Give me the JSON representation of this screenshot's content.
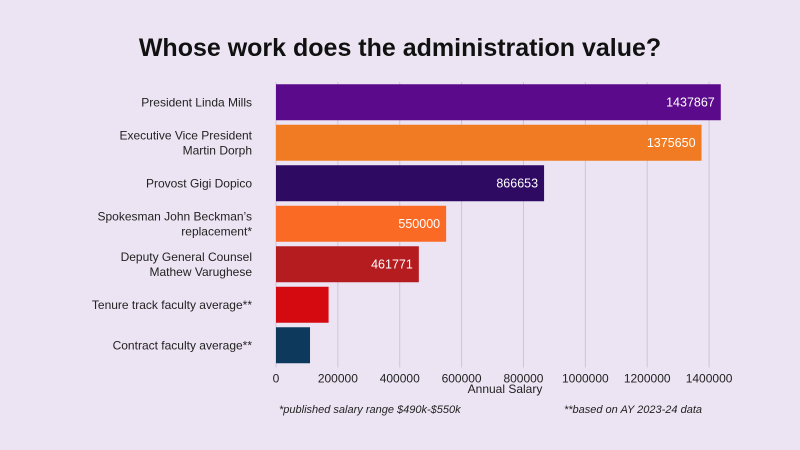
{
  "chart_data": {
    "type": "bar",
    "orientation": "horizontal",
    "title": "Whose work does the administration value?",
    "xlabel": "Annual Salary",
    "ylabel": "",
    "xlim": [
      0,
      1500000
    ],
    "xticks": [
      0,
      200000,
      400000,
      600000,
      800000,
      1000000,
      1200000,
      1400000
    ],
    "grid": true,
    "categories": [
      [
        "President Linda Mills"
      ],
      [
        "Executive Vice President",
        "Martin Dorph"
      ],
      [
        "Provost Gigi Dopico"
      ],
      [
        "Spokesman John Beckman’s",
        "replacement*"
      ],
      [
        "Deputy General Counsel",
        "Mathew Varughese"
      ],
      [
        "Tenure track faculty average**"
      ],
      [
        "Contract faculty average**"
      ]
    ],
    "values": [
      1437867,
      1375650,
      866653,
      550000,
      461771,
      170000,
      110000
    ],
    "data_labels": [
      "1437867",
      "1375650",
      "866653",
      "550000",
      "461771",
      "",
      ""
    ],
    "colors": [
      "#5b0a8c",
      "#f07b23",
      "#2e0a63",
      "#fb6a24",
      "#b51c20",
      "#d40a10",
      "#0d3a5c"
    ]
  },
  "footnotes": {
    "left": "*published salary range $490k-$550k",
    "right": "**based on AY 2023-24 data"
  }
}
